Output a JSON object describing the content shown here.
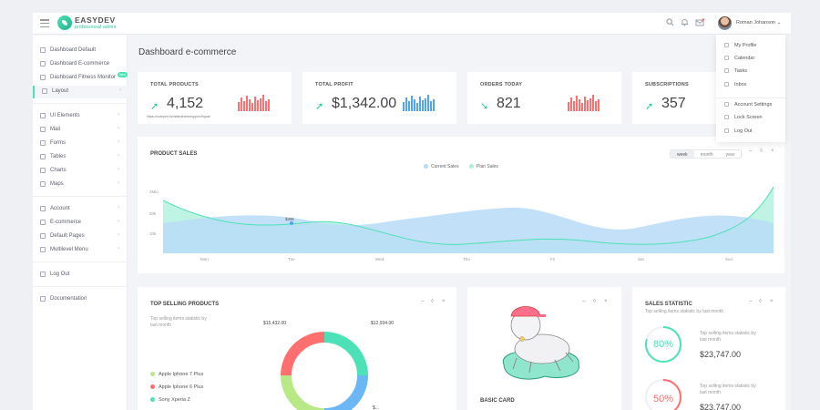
{
  "brand": {
    "name": "EASYDEV",
    "tagline": "professional admin"
  },
  "topbar": {
    "user_name": "Roman Johanson"
  },
  "sidebar": {
    "items": [
      {
        "label": "Dashboard Default",
        "icon": "home-icon"
      },
      {
        "label": "Dashboard E-commerce",
        "icon": "store-icon"
      },
      {
        "label": "Dashboard Fitness Monitor",
        "icon": "heart-icon",
        "badge": "New"
      },
      {
        "label": "Layout",
        "icon": "layout-icon"
      },
      {
        "label": "UI Elements",
        "icon": "diamond-icon"
      },
      {
        "label": "Mail",
        "icon": "mail-icon"
      },
      {
        "label": "Forms",
        "icon": "form-icon"
      },
      {
        "label": "Tables",
        "icon": "table-icon"
      },
      {
        "label": "Charts",
        "icon": "chart-icon"
      },
      {
        "label": "Maps",
        "icon": "map-icon"
      },
      {
        "label": "Account",
        "icon": "user-icon"
      },
      {
        "label": "E-commerce",
        "icon": "cart-icon"
      },
      {
        "label": "Default Pages",
        "icon": "pages-icon"
      },
      {
        "label": "Multilevel Menu",
        "icon": "menu-icon"
      },
      {
        "label": "Log Out",
        "icon": "logout-icon"
      },
      {
        "label": "Documentation",
        "icon": "docs-icon"
      }
    ]
  },
  "page_title": "Dashboard e-commerce",
  "kpis": [
    {
      "title": "TOTAL PRODUCTS",
      "value": "4,152",
      "note": "https://codepen.io/mattrothenberg/pen/lbgrab",
      "color": "#ff6f6f"
    },
    {
      "title": "TOTAL PROFIT",
      "value": "$1,342.00",
      "note": "",
      "color": "#4fa4f4"
    },
    {
      "title": "ORDERS TODAY",
      "value": "821",
      "note": "",
      "color": "#ff6f6f"
    },
    {
      "title": "SUBSCRIPTIONS",
      "value": "357",
      "note": "",
      "color": "#4ce1b6"
    }
  ],
  "product_sales": {
    "title": "PRODUCT SALES",
    "legend": [
      "Current Sales",
      "Plan Sales"
    ],
    "periods": [
      "week",
      "month",
      "year"
    ],
    "y_ticks": [
      "1Mio",
      "50k",
      "10k"
    ],
    "x_ticks": [
      "Mon",
      "Tue",
      "Wed",
      "Thu",
      "Fri",
      "Sat",
      "Sun"
    ],
    "point_label": "$39k"
  },
  "top_selling": {
    "title": "TOP SELLING PRODUCTS",
    "subtitle": "Top selling items statistic by last month",
    "items": [
      {
        "label": "Apple Iphone 7 Plus",
        "color": "#b8e986"
      },
      {
        "label": "Apple Iphone 6 Plus",
        "color": "#ff6f6f"
      },
      {
        "label": "Sony Xperia Z",
        "color": "#4ce1b6"
      }
    ],
    "donut_labels": [
      "$15,432.00",
      "$12,934.00",
      "$..."
    ]
  },
  "basic_card": {
    "title": "BASIC CARD"
  },
  "sales_statistic": {
    "title": "SALES STATISTIC",
    "subtitle": "Top selling items statistic by last month",
    "rows": [
      {
        "percent": "80%",
        "text": "Top selling items statistic by last month",
        "value": "$23,747.00",
        "color": "#4ce1b6"
      },
      {
        "percent": "50%",
        "text": "Top selling items statistic by last month",
        "value": "$23,747.00",
        "color": "#ff6f6f"
      }
    ]
  },
  "profile_menu": {
    "items": [
      "My Profile",
      "Calendar",
      "Tasks",
      "Inbox",
      "Account Settings",
      "Lock Screen",
      "Log Out"
    ]
  }
}
